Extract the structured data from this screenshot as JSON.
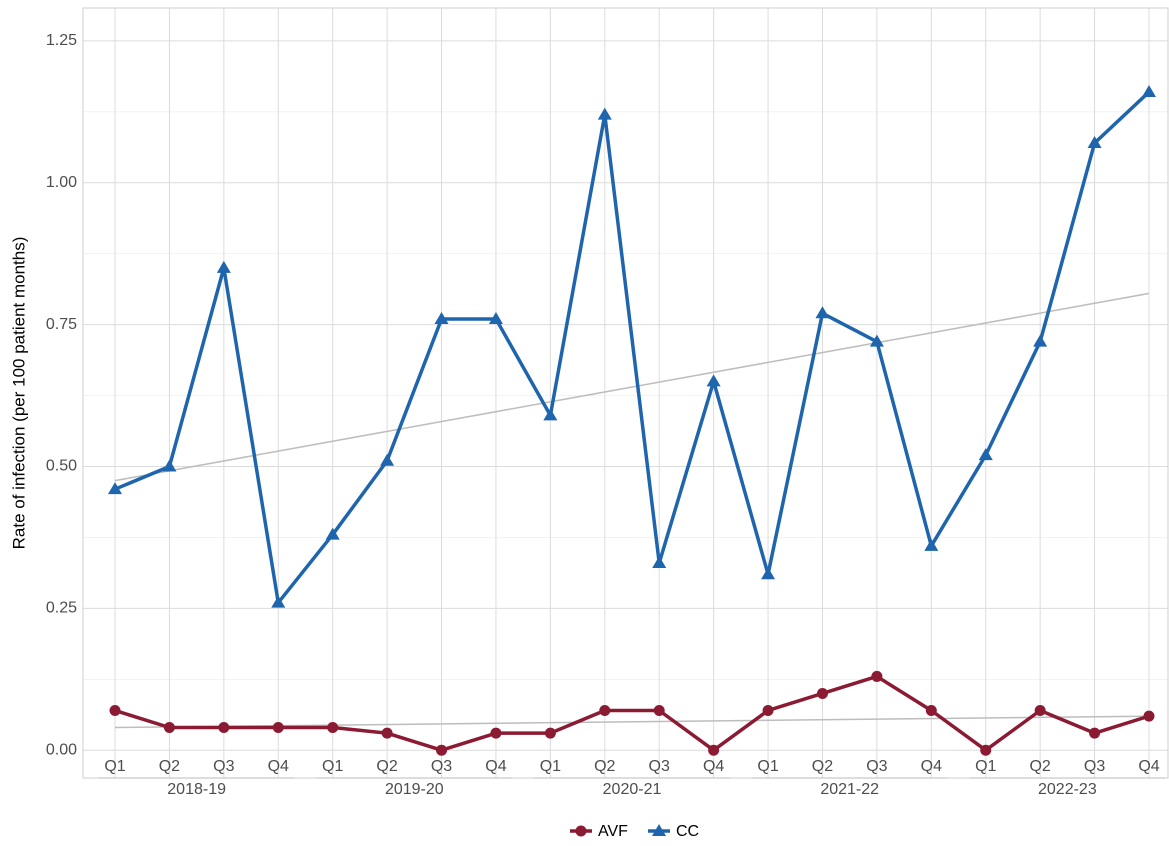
{
  "chart_data": {
    "type": "line",
    "y_label": "Rate of infection (per 100 patient months)",
    "categories": [
      "Q1",
      "Q2",
      "Q3",
      "Q4",
      "Q1",
      "Q2",
      "Q3",
      "Q4",
      "Q1",
      "Q2",
      "Q3",
      "Q4",
      "Q1",
      "Q2",
      "Q3",
      "Q4",
      "Q1",
      "Q2",
      "Q3",
      "Q4"
    ],
    "x_groups": [
      "2018-19",
      "2019-20",
      "2020-21",
      "2021-22",
      "2022-23"
    ],
    "series": [
      {
        "name": "AVF",
        "color": "#8b1a33",
        "marker": "circle",
        "values": [
          0.07,
          0.04,
          0.04,
          0.04,
          0.04,
          0.03,
          0.0,
          0.03,
          0.03,
          0.07,
          0.07,
          0.0,
          0.07,
          0.1,
          0.13,
          0.07,
          0.0,
          0.07,
          0.03,
          0.06
        ]
      },
      {
        "name": "CC",
        "color": "#1f65ad",
        "marker": "triangle",
        "values": [
          0.46,
          0.5,
          0.85,
          0.26,
          0.38,
          0.51,
          0.76,
          0.76,
          0.59,
          1.12,
          0.33,
          0.65,
          0.31,
          0.77,
          0.72,
          0.36,
          0.52,
          0.72,
          1.07,
          1.16
        ]
      }
    ],
    "trendlines": [
      {
        "color": "#bdbdbd",
        "values": [
          0.04,
          0.06
        ]
      },
      {
        "color": "#bdbdbd",
        "values": [
          0.475,
          0.805
        ]
      }
    ],
    "ylim": [
      -0.049,
      1.308
    ],
    "yticks": [
      {
        "value": 0,
        "label": "0.00"
      },
      {
        "value": 0.25,
        "label": "0.25"
      },
      {
        "value": 0.5,
        "label": "0.50"
      },
      {
        "value": 0.75,
        "label": "0.75"
      },
      {
        "value": 1,
        "label": "1.00"
      },
      {
        "value": 1.25,
        "label": "1.25"
      }
    ],
    "grid": true,
    "minor_grid": true,
    "legend": "bottom"
  }
}
